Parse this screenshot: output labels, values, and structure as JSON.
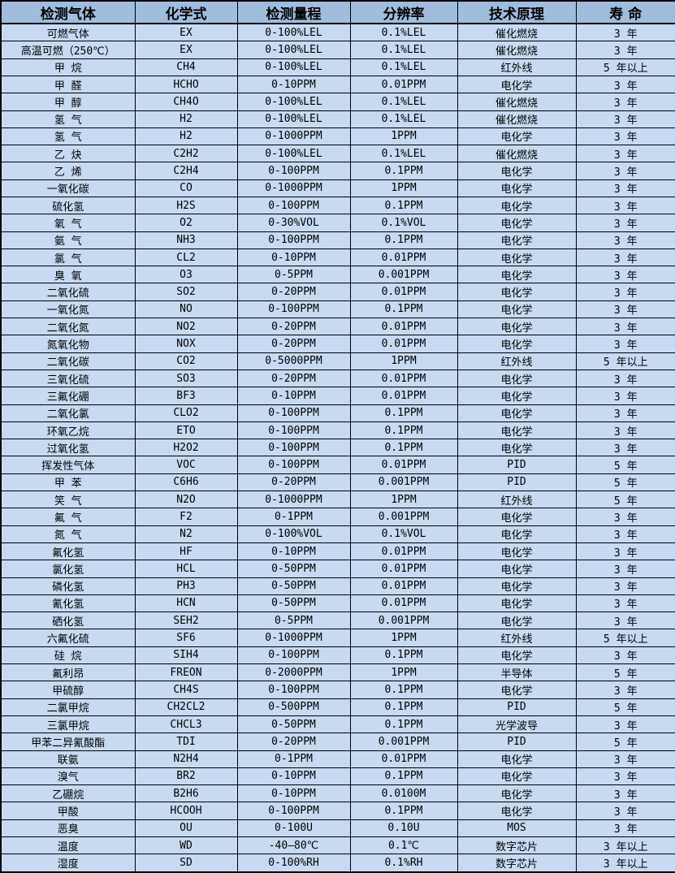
{
  "colors": {
    "header_bg": "#a0bddd",
    "row_bg": "#c7daf2",
    "border": "#000000",
    "text": "#000000"
  },
  "table": {
    "columns": [
      {
        "key": "gas",
        "label": "检测气体"
      },
      {
        "key": "formula",
        "label": "化学式"
      },
      {
        "key": "range",
        "label": "检测量程"
      },
      {
        "key": "resolution",
        "label": "分辨率"
      },
      {
        "key": "principle",
        "label": "技术原理"
      },
      {
        "key": "lifespan",
        "label": "寿 命"
      }
    ],
    "rows": [
      [
        "可燃气体",
        "EX",
        "0-100%LEL",
        "0.1%LEL",
        "催化燃烧",
        "3 年"
      ],
      [
        "高温可燃（250℃）",
        "EX",
        "0-100%LEL",
        "0.1%LEL",
        "催化燃烧",
        "3 年"
      ],
      [
        "甲 烷",
        "CH4",
        "0-100%LEL",
        "0.1%LEL",
        "红外线",
        "5 年以上"
      ],
      [
        "甲 醛",
        "HCHO",
        "0-10PPM",
        "0.01PPM",
        "电化学",
        "3 年"
      ],
      [
        "甲 醇",
        "CH4O",
        "0-100%LEL",
        "0.1%LEL",
        "催化燃烧",
        "3 年"
      ],
      [
        "氢 气",
        "H2",
        "0-100%LEL",
        "0.1%LEL",
        "催化燃烧",
        "3 年"
      ],
      [
        "氢 气",
        "H2",
        "0-1000PPM",
        "1PPM",
        "电化学",
        "3 年"
      ],
      [
        "乙 炔",
        "C2H2",
        "0-100%LEL",
        "0.1%LEL",
        "催化燃烧",
        "3 年"
      ],
      [
        "乙 烯",
        "C2H4",
        "0-100PPM",
        "0.1PPM",
        "电化学",
        "3 年"
      ],
      [
        "一氧化碳",
        "CO",
        "0-1000PPM",
        "1PPM",
        "电化学",
        "3 年"
      ],
      [
        "硫化氢",
        "H2S",
        "0-100PPM",
        "0.1PPM",
        "电化学",
        "3 年"
      ],
      [
        "氧 气",
        "O2",
        "0-30%VOL",
        "0.1%VOL",
        "电化学",
        "3 年"
      ],
      [
        "氨 气",
        "NH3",
        "0-100PPM",
        "0.1PPM",
        "电化学",
        "3 年"
      ],
      [
        "氯 气",
        "CL2",
        "0-10PPM",
        "0.01PPM",
        "电化学",
        "3 年"
      ],
      [
        "臭 氧",
        "O3",
        "0-5PPM",
        "0.001PPM",
        "电化学",
        "3 年"
      ],
      [
        "二氧化硫",
        "SO2",
        "0-20PPM",
        "0.01PPM",
        "电化学",
        "3 年"
      ],
      [
        "一氧化氮",
        "NO",
        "0-100PPM",
        "0.1PPM",
        "电化学",
        "3 年"
      ],
      [
        "二氧化氮",
        "NO2",
        "0-20PPM",
        "0.01PPM",
        "电化学",
        "3 年"
      ],
      [
        "氮氧化物",
        "NOX",
        "0-20PPM",
        "0.01PPM",
        "电化学",
        "3 年"
      ],
      [
        "二氧化碳",
        "CO2",
        "0-5000PPM",
        "1PPM",
        "红外线",
        "5 年以上"
      ],
      [
        "三氧化硫",
        "SO3",
        "0-20PPM",
        "0.01PPM",
        "电化学",
        "3 年"
      ],
      [
        "三氟化硼",
        "BF3",
        "0-10PPM",
        "0.01PPM",
        "电化学",
        "3 年"
      ],
      [
        "二氧化氯",
        "CLO2",
        "0-100PPM",
        "0.1PPM",
        "电化学",
        "3 年"
      ],
      [
        "环氧乙烷",
        "ETO",
        "0-100PPM",
        "0.1PPM",
        "电化学",
        "3 年"
      ],
      [
        "过氧化氢",
        "H2O2",
        "0-100PPM",
        "0.1PPM",
        "电化学",
        "3 年"
      ],
      [
        "挥发性气体",
        "VOC",
        "0-100PPM",
        "0.01PPM",
        "PID",
        "5 年"
      ],
      [
        "甲 苯",
        "C6H6",
        "0-20PPM",
        "0.001PPM",
        "PID",
        "5 年"
      ],
      [
        "笑 气",
        "N2O",
        "0-1000PPM",
        "1PPM",
        "红外线",
        "5 年"
      ],
      [
        "氟 气",
        "F2",
        "0-1PPM",
        "0.001PPM",
        "电化学",
        "3 年"
      ],
      [
        "氮 气",
        "N2",
        "0-100%VOL",
        "0.1%VOL",
        "电化学",
        "3 年"
      ],
      [
        "氟化氢",
        "HF",
        "0-10PPM",
        "0.01PPM",
        "电化学",
        "3 年"
      ],
      [
        "氯化氢",
        "HCL",
        "0-50PPM",
        "0.01PPM",
        "电化学",
        "3 年"
      ],
      [
        "磷化氢",
        "PH3",
        "0-50PPM",
        "0.01PPM",
        "电化学",
        "3 年"
      ],
      [
        "氰化氢",
        "HCN",
        "0-50PPM",
        "0.01PPM",
        "电化学",
        "3 年"
      ],
      [
        "硒化氢",
        "SEH2",
        "0-5PPM",
        "0.001PPM",
        "电化学",
        "3 年"
      ],
      [
        "六氟化硫",
        "SF6",
        "0-1000PPM",
        "1PPM",
        "红外线",
        "5 年以上"
      ],
      [
        "硅 烷",
        "SIH4",
        "0-100PPM",
        "0.1PPM",
        "电化学",
        "3 年"
      ],
      [
        "氟利昂",
        "FREON",
        "0-2000PPM",
        "1PPM",
        "半导体",
        "5 年"
      ],
      [
        "甲硫醇",
        "CH4S",
        "0-100PPM",
        "0.1PPM",
        "电化学",
        "3 年"
      ],
      [
        "二氯甲烷",
        "CH2CL2",
        "0-500PPM",
        "0.1PPM",
        "PID",
        "5 年"
      ],
      [
        "三氯甲烷",
        "CHCL3",
        "0-50PPM",
        "0.1PPM",
        "光学波导",
        "3 年"
      ],
      [
        "甲苯二异氰酸酯",
        "TDI",
        "0-20PPM",
        "0.001PPM",
        "PID",
        "5 年"
      ],
      [
        "联氨",
        "N2H4",
        "0-1PPM",
        "0.01PPM",
        "电化学",
        "3 年"
      ],
      [
        "溴气",
        "BR2",
        "0-10PPM",
        "0.1PPM",
        "电化学",
        "3 年"
      ],
      [
        "乙硼烷",
        "B2H6",
        "0-10PPM",
        "0.0100M",
        "电化学",
        "3 年"
      ],
      [
        "甲酸",
        "HCOOH",
        "0-100PPM",
        "0.1PPM",
        "电化学",
        "3 年"
      ],
      [
        "恶臭",
        "OU",
        "0-100U",
        "0.10U",
        "MOS",
        "3 年"
      ],
      [
        "温度",
        "WD",
        "-40—80℃",
        "0.1℃",
        "数字芯片",
        "3 年以上"
      ],
      [
        "湿度",
        "SD",
        "0-100%RH",
        "0.1%RH",
        "数字芯片",
        "3 年以上"
      ]
    ]
  }
}
